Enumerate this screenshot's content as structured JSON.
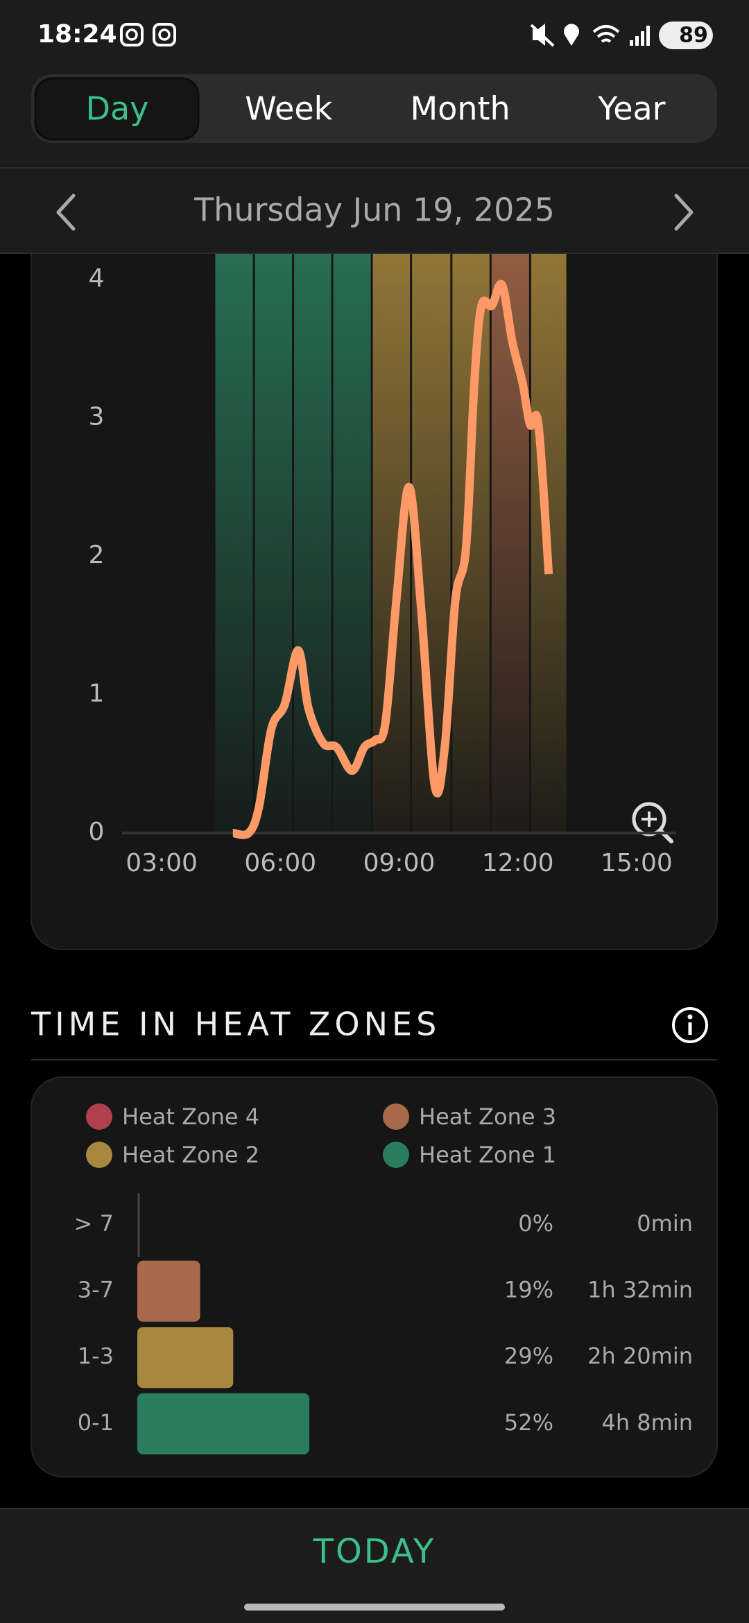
{
  "status_bar": {
    "time": "18:24",
    "battery": "89"
  },
  "tabs": [
    {
      "label": "Day",
      "selected": true
    },
    {
      "label": "Week",
      "selected": false
    },
    {
      "label": "Month",
      "selected": false
    },
    {
      "label": "Year",
      "selected": false
    }
  ],
  "date_nav": {
    "date": "Thursday Jun 19, 2025"
  },
  "chart_data": [
    {
      "type": "line",
      "x": [
        4.8,
        5.2,
        5.46,
        5.77,
        6.11,
        6.45,
        6.71,
        7.08,
        7.42,
        7.81,
        8.12,
        8.39,
        8.65,
        8.93,
        9.25,
        9.56,
        9.9,
        10.16,
        10.42,
        10.69,
        10.9,
        11.08,
        11.34,
        11.6,
        11.86,
        12.12,
        12.31,
        12.52,
        12.78
      ],
      "values": [
        0,
        0,
        0.19,
        0.75,
        0.93,
        1.32,
        0.9,
        0.65,
        0.62,
        0.45,
        0.62,
        0.67,
        0.79,
        1.68,
        2.5,
        1.61,
        0.34,
        0.64,
        1.68,
        2.06,
        3.25,
        3.81,
        3.81,
        3.96,
        3.55,
        3.25,
        2.95,
        2.95,
        1.87
      ],
      "color": "#ff9a66",
      "xlim": [
        2,
        16
      ],
      "ylim": [
        0,
        4.2
      ],
      "xticks": [
        {
          "value": 3,
          "label": "03:00"
        },
        {
          "value": 6,
          "label": "06:00"
        },
        {
          "value": 9,
          "label": "09:00"
        },
        {
          "value": 12,
          "label": "12:00"
        },
        {
          "value": 15,
          "label": "15:00"
        }
      ],
      "yticks": [
        0,
        1,
        2,
        3,
        4
      ],
      "bands": [
        {
          "start": 4.33,
          "end": 5.33,
          "color": "#2a7e5e"
        },
        {
          "start": 5.33,
          "end": 6.32,
          "color": "#2a7e5e"
        },
        {
          "start": 6.32,
          "end": 7.31,
          "color": "#2a7e5e"
        },
        {
          "start": 7.31,
          "end": 8.31,
          "color": "#2a7e5e"
        },
        {
          "start": 8.31,
          "end": 9.3,
          "color": "#a8873e"
        },
        {
          "start": 9.3,
          "end": 10.32,
          "color": "#a8873e"
        },
        {
          "start": 10.32,
          "end": 11.31,
          "color": "#a8873e"
        },
        {
          "start": 11.31,
          "end": 12.31,
          "color": "#a86a4a"
        },
        {
          "start": 12.31,
          "end": 13.25,
          "color": "#a8873e"
        }
      ]
    },
    {
      "type": "hbar",
      "title": "TIME IN HEAT ZONES",
      "legend": [
        {
          "name": "Heat Zone 4",
          "color": "#b0404c"
        },
        {
          "name": "Heat Zone 3",
          "color": "#a86a4a"
        },
        {
          "name": "Heat Zone 2",
          "color": "#a8873e"
        },
        {
          "name": "Heat Zone 1",
          "color": "#2a7e5e"
        }
      ],
      "categories": [
        "> 7",
        "3-7",
        "1-3",
        "0-1"
      ],
      "values": [
        0,
        19,
        29,
        52
      ],
      "value_labels": [
        "0%",
        "19%",
        "29%",
        "52%"
      ],
      "durations": [
        "0min",
        "1h 32min",
        "2h 20min",
        "4h 8min"
      ],
      "colors": [
        "#b0404c",
        "#a86a4a",
        "#a8873e",
        "#2a7e5e"
      ],
      "xlim": [
        0,
        100
      ]
    }
  ],
  "footer": {
    "button": "TODAY"
  }
}
